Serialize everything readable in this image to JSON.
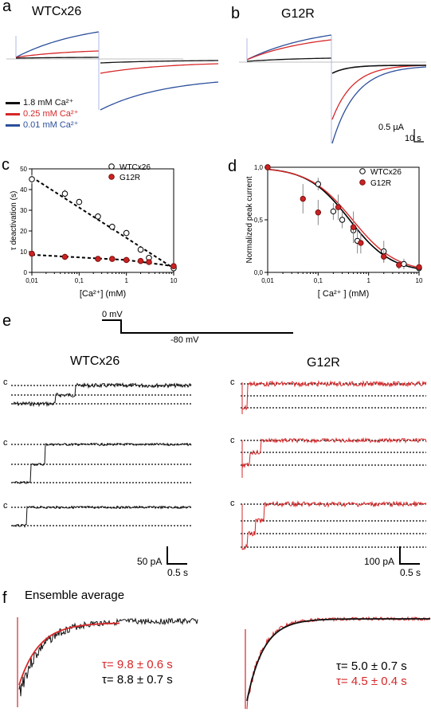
{
  "panels": {
    "a": {
      "letter": "a",
      "title": "WTCx26"
    },
    "b": {
      "letter": "b",
      "title": "G12R"
    },
    "c": {
      "letter": "c"
    },
    "d": {
      "letter": "d"
    },
    "e": {
      "letter": "e",
      "left_title": "WTCx26",
      "right_title": "G12R",
      "protocol_hold": "0 mV",
      "protocol_step": "-80 mV",
      "closed_label": "c",
      "scale_left": {
        "current": "50 pA",
        "time": "0.5 s"
      },
      "scale_right": {
        "current": "100 pA",
        "time": "0.5 s"
      }
    },
    "f": {
      "letter": "f",
      "title": "Ensemble average",
      "left_tau_red": "τ= 9.8 ± 0.6 s",
      "left_tau_black": "τ= 8.8 ± 0.7 s",
      "right_tau_black": "τ= 5.0 ± 0.7 s",
      "right_tau_red": "τ= 4.5 ± 0.4 s"
    }
  },
  "legend_ab": [
    {
      "label": "1.8 mM Ca²⁺",
      "color": "#111111"
    },
    {
      "label": "0.25 mM Ca²⁺",
      "color": "#d62728"
    },
    {
      "label": "0.01 mM Ca²⁺",
      "color": "#2c4f9c"
    }
  ],
  "scale_b": {
    "current": "0.5 µA",
    "time": "10 s"
  },
  "colors": {
    "black": "#111111",
    "red": "#d62728",
    "blue": "#2c4f9c",
    "marker_red": "#cc2222"
  },
  "chart_data": [
    {
      "id": "c",
      "type": "scatter",
      "xlabel": "[Ca²⁺] (mM)",
      "ylabel": "τ deactivation (s)",
      "xscale": "log",
      "xlim": [
        0.01,
        10
      ],
      "ylim": [
        0,
        50
      ],
      "xticks": [
        "0,01",
        "0,1",
        "1",
        "10"
      ],
      "xtick_values": [
        0.01,
        0.1,
        1,
        10
      ],
      "yticks": [
        0,
        10,
        20,
        30,
        40,
        50
      ],
      "legend": "top-right",
      "series": [
        {
          "name": "WTCx26",
          "marker": "open-circle",
          "fit": "dashed",
          "x": [
            0.01,
            0.05,
            0.1,
            0.25,
            0.5,
            1.0,
            2.0,
            3.0,
            10.0
          ],
          "y": [
            45,
            38,
            34,
            27,
            22,
            19,
            11,
            7,
            2
          ],
          "err": [
            2,
            2,
            1.5,
            1.5,
            1.5,
            1.5,
            1.5,
            1,
            1
          ]
        },
        {
          "name": "G12R",
          "marker": "red-filled-circle",
          "fit": "dashed",
          "x": [
            0.01,
            0.05,
            0.25,
            0.5,
            1.0,
            2.0,
            3.0,
            10.0
          ],
          "y": [
            9,
            7.5,
            6.5,
            6.5,
            6,
            5.5,
            5,
            3
          ],
          "err": [
            1.5,
            1.5,
            1,
            1,
            1,
            1,
            1,
            1
          ]
        }
      ]
    },
    {
      "id": "d",
      "type": "scatter",
      "xlabel": "[ Ca²⁺ ] (mM)",
      "ylabel": "Normalized peak current",
      "xscale": "log",
      "xlim": [
        0.01,
        10
      ],
      "ylim": [
        0,
        1.0
      ],
      "xticks": [
        "0,01",
        "0,1",
        "1",
        "10"
      ],
      "xtick_values": [
        0.01,
        0.1,
        1,
        10
      ],
      "yticks": [
        "0,0",
        "0,5",
        "1,0"
      ],
      "ytick_values": [
        0,
        0.5,
        1.0
      ],
      "legend": "top-right",
      "series": [
        {
          "name": "WTCx26",
          "marker": "open-circle",
          "fit": "line-black",
          "x": [
            0.01,
            0.1,
            0.2,
            0.3,
            0.5,
            0.6,
            2.0,
            5.0,
            10.0
          ],
          "y": [
            1.0,
            0.84,
            0.58,
            0.5,
            0.4,
            0.3,
            0.2,
            0.08,
            0.04
          ],
          "err": [
            0.02,
            0.06,
            0.08,
            0.08,
            0.12,
            0.12,
            0.1,
            0.05,
            0.03
          ]
        },
        {
          "name": "G12R",
          "marker": "red-filled-circle",
          "fit": "line-red",
          "x": [
            0.01,
            0.05,
            0.1,
            0.25,
            0.5,
            0.7,
            2.0,
            4.0,
            10.0
          ],
          "y": [
            1.0,
            0.7,
            0.57,
            0.62,
            0.43,
            0.28,
            0.15,
            0.07,
            0.05
          ],
          "err": [
            0.02,
            0.14,
            0.12,
            0.12,
            0.15,
            0.1,
            0.06,
            0.04,
            0.03
          ]
        }
      ]
    }
  ]
}
